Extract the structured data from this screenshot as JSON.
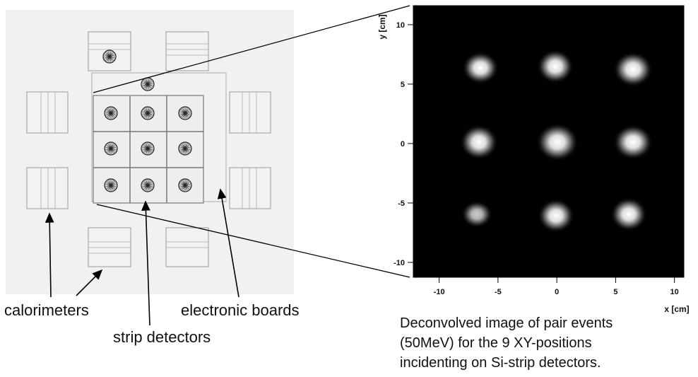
{
  "diagram": {
    "labels": {
      "calorimeters": "calorimeters",
      "strip_detectors": "strip detectors",
      "electronic_boards": "electronic boards"
    }
  },
  "image_plot": {
    "x_label": "x [cm]",
    "y_label": "y [cm]",
    "xlim": [
      -12.2,
      10.8
    ],
    "ylim": [
      -11.25,
      11.6
    ],
    "xticks": [
      -10,
      -5,
      0,
      5,
      10
    ],
    "yticks": [
      -10,
      -5,
      0,
      5,
      10
    ]
  },
  "caption": [
    "Deconvolved image of pair events",
    "(50MeV) for the 9 XY-positions",
    "incidenting on Si-strip detectors."
  ]
}
